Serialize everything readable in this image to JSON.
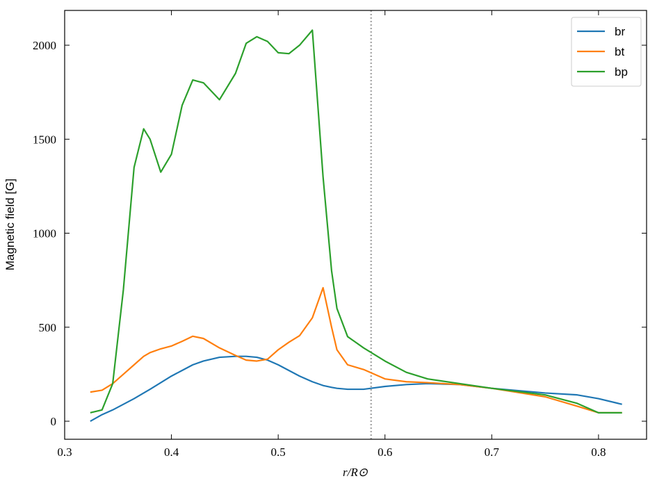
{
  "chart_data": {
    "type": "line",
    "xlabel": "r/R⊙",
    "ylabel": "Magnetic field [G]",
    "x": [
      0.324,
      0.335,
      0.345,
      0.355,
      0.365,
      0.374,
      0.38,
      0.39,
      0.4,
      0.41,
      0.42,
      0.43,
      0.445,
      0.46,
      0.47,
      0.48,
      0.49,
      0.5,
      0.51,
      0.52,
      0.532,
      0.542,
      0.55,
      0.555,
      0.565,
      0.58,
      0.6,
      0.62,
      0.64,
      0.67,
      0.7,
      0.75,
      0.78,
      0.8,
      0.822
    ],
    "series": [
      {
        "name": "br",
        "color": "#1f77b4",
        "values": [
          0,
          35,
          60,
          90,
          120,
          150,
          170,
          205,
          240,
          270,
          300,
          320,
          340,
          345,
          345,
          340,
          325,
          300,
          270,
          240,
          210,
          190,
          180,
          175,
          170,
          170,
          185,
          195,
          200,
          195,
          175,
          150,
          140,
          120,
          90
        ]
      },
      {
        "name": "bt",
        "color": "#ff7f0e",
        "values": [
          155,
          165,
          200,
          250,
          300,
          345,
          365,
          385,
          400,
          425,
          452,
          440,
          390,
          350,
          325,
          320,
          330,
          380,
          420,
          455,
          550,
          710,
          500,
          380,
          300,
          275,
          225,
          210,
          205,
          195,
          175,
          130,
          80,
          45,
          45
        ]
      },
      {
        "name": "bp",
        "color": "#2ca02c",
        "values": [
          45,
          60,
          200,
          700,
          1350,
          1555,
          1500,
          1325,
          1420,
          1680,
          1815,
          1800,
          1710,
          1850,
          2010,
          2045,
          2020,
          1960,
          1955,
          2000,
          2080,
          1300,
          800,
          600,
          450,
          390,
          320,
          260,
          225,
          200,
          175,
          140,
          95,
          45,
          45
        ]
      }
    ],
    "vline": {
      "x": 0.587,
      "color": "#aaaaaa"
    },
    "xlim": [
      0.3,
      0.845
    ],
    "xticks": [
      0.3,
      0.4,
      0.5,
      0.6,
      0.7,
      0.8
    ],
    "ylim": [
      -96,
      2185
    ],
    "yticks": [
      0,
      500,
      1000,
      1500,
      2000
    ],
    "legend": "upper right"
  }
}
